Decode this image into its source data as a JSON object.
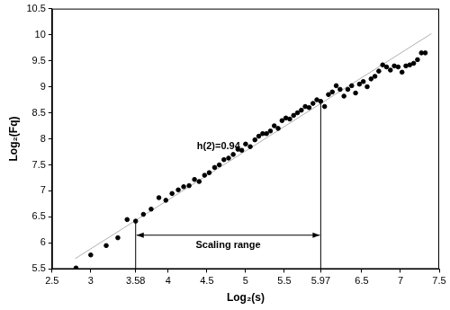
{
  "chart_data": {
    "type": "scatter",
    "xlabel": "Log₂(s)",
    "ylabel": "Log₂(Fq)",
    "x": [
      2.81,
      3.0,
      3.2,
      3.35,
      3.47,
      3.58,
      3.68,
      3.78,
      3.88,
      3.97,
      4.05,
      4.13,
      4.2,
      4.27,
      4.34,
      4.4,
      4.47,
      4.53,
      4.6,
      4.66,
      4.72,
      4.78,
      4.84,
      4.9,
      4.95,
      5.0,
      5.06,
      5.12,
      5.17,
      5.22,
      5.27,
      5.32,
      5.37,
      5.42,
      5.47,
      5.52,
      5.57,
      5.62,
      5.67,
      5.72,
      5.77,
      5.82,
      5.87,
      5.92,
      5.97,
      6.02,
      6.07,
      6.12,
      6.17,
      6.22,
      6.27,
      6.32,
      6.37,
      6.42,
      6.47,
      6.52,
      6.57,
      6.62,
      6.67,
      6.72,
      6.77,
      6.82,
      6.87,
      6.92,
      6.97,
      7.02,
      7.07,
      7.12,
      7.17,
      7.22,
      7.27,
      7.32
    ],
    "values": [
      5.52,
      5.77,
      5.95,
      6.1,
      6.45,
      6.42,
      6.55,
      6.65,
      6.87,
      6.82,
      6.95,
      7.02,
      7.08,
      7.1,
      7.22,
      7.18,
      7.3,
      7.35,
      7.45,
      7.5,
      7.6,
      7.63,
      7.7,
      7.8,
      7.78,
      7.9,
      7.85,
      7.98,
      8.05,
      8.1,
      8.1,
      8.15,
      8.25,
      8.2,
      8.35,
      8.4,
      8.38,
      8.45,
      8.5,
      8.55,
      8.62,
      8.6,
      8.68,
      8.75,
      8.72,
      8.62,
      8.85,
      8.9,
      9.02,
      8.95,
      8.82,
      8.95,
      9.02,
      8.88,
      9.05,
      9.1,
      9.0,
      9.15,
      9.2,
      9.3,
      9.42,
      9.38,
      9.32,
      9.4,
      9.38,
      9.28,
      9.4,
      9.42,
      9.45,
      9.52,
      9.65,
      9.65
    ],
    "color": "#000000",
    "marker": "circle",
    "fit_line": {
      "x": [
        2.8,
        7.4
      ],
      "values": [
        5.7,
        10.02
      ],
      "color": "#b0b0b0"
    },
    "annotations": [
      {
        "text": "h(2)=0.94",
        "x": 4.65,
        "y": 7.85
      }
    ],
    "scaling_range": {
      "text": "Scaling range",
      "from": 3.58,
      "to": 5.97,
      "y": 6.15,
      "from_top": 6.42,
      "to_top": 8.72
    },
    "xlim": [
      2.5,
      7.5
    ],
    "xticks": [
      2.5,
      3,
      3.58,
      4,
      4.5,
      5,
      5.5,
      5.97,
      6.5,
      7,
      7.5
    ],
    "ylim": [
      5.5,
      10.5
    ],
    "yticks": [
      5.5,
      6,
      6.5,
      7,
      7.5,
      8,
      8.5,
      9,
      9.5,
      10,
      10.5
    ],
    "grid": false
  }
}
